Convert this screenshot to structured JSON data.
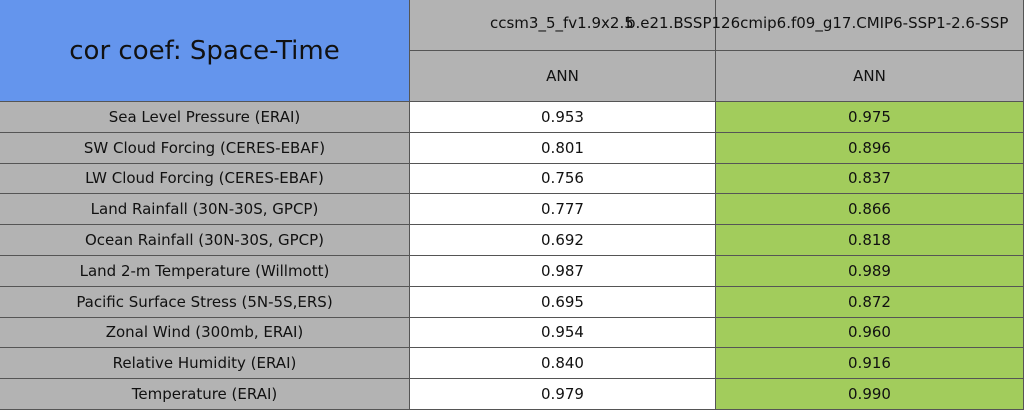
{
  "header": {
    "title": "cor coef: Space-Time",
    "columns": [
      "ccsm3_5_fv1.9x2.5",
      "b.e21.BSSP126cmip6.f09_g17.CMIP6-SSP1-2.6-SSP"
    ],
    "subcolumns": [
      "ANN",
      "ANN"
    ]
  },
  "table": {
    "rows": [
      [
        "Sea Level Pressure (ERAI)",
        "0.953",
        "0.975"
      ],
      [
        "SW Cloud Forcing (CERES-EBAF)",
        "0.801",
        "0.896"
      ],
      [
        "LW Cloud Forcing (CERES-EBAF)",
        "0.756",
        "0.837"
      ],
      [
        "Land Rainfall (30N-30S, GPCP)",
        "0.777",
        "0.866"
      ],
      [
        "Ocean Rainfall (30N-30S, GPCP)",
        "0.692",
        "0.818"
      ],
      [
        "Land 2-m Temperature (Willmott)",
        "0.987",
        "0.989"
      ],
      [
        "Pacific Surface Stress (5N-5S,ERS)",
        "0.695",
        "0.872"
      ],
      [
        "Zonal Wind (300mb, ERAI)",
        "0.954",
        "0.960"
      ],
      [
        "Relative Humidity (ERAI)",
        "0.840",
        "0.916"
      ],
      [
        "Temperature (ERAI)",
        "0.979",
        "0.990"
      ]
    ]
  }
}
